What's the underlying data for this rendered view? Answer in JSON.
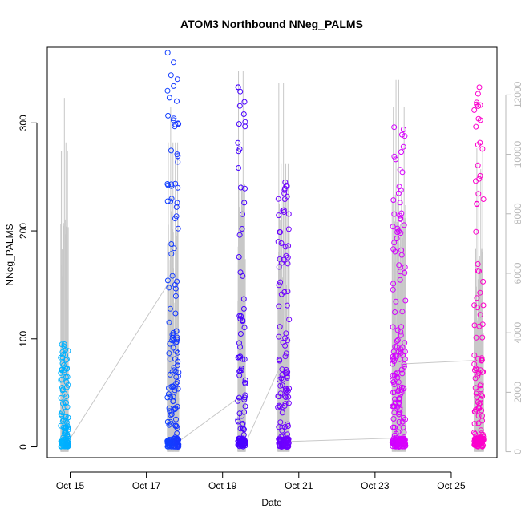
{
  "chart_data": {
    "type": "scatter",
    "title": "ATOM3 Northbound NNeg_PALMS",
    "xlabel": "Date",
    "ylabel": "NNeg_PALMS",
    "x_ticks": [
      "Oct 15",
      "Oct 17",
      "Oct 19",
      "Oct 21",
      "Oct 23",
      "Oct 25"
    ],
    "x_tick_days": [
      15,
      17,
      19,
      21,
      23,
      25
    ],
    "xlim_days": [
      14.4,
      26.2
    ],
    "ylim": [
      -10,
      370
    ],
    "y_ticks": [
      0,
      100,
      200,
      300
    ],
    "y2lim": [
      -200,
      13600
    ],
    "y2_ticks": [
      0,
      2000,
      4000,
      6000,
      8000,
      10000,
      12000
    ],
    "grid": false,
    "legend": "none",
    "point_color_gradient": [
      "#00b7ff",
      "#0059ff",
      "#3d00ff",
      "#8a00ff",
      "#d600ff",
      "#ff00c8"
    ],
    "secondary_line_color": "#c8c8c8",
    "groups": [
      {
        "day_start": 14.75,
        "day_end": 14.95,
        "max_y": 95,
        "n": 120,
        "y2_max": 11900,
        "y2_spikes": [
          6000,
          10100,
          10400,
          11900
        ]
      },
      {
        "day_start": 17.55,
        "day_end": 17.85,
        "max_y": 365,
        "n": 180,
        "y2_max": 11600,
        "y2_spikes": [
          11600,
          9800,
          10400
        ]
      },
      {
        "day_start": 19.4,
        "day_end": 19.6,
        "max_y": 333,
        "n": 110,
        "y2_max": 12800,
        "y2_spikes": [
          10900,
          12800,
          9000
        ]
      },
      {
        "day_start": 20.45,
        "day_end": 20.75,
        "max_y": 245,
        "n": 160,
        "y2_max": 12400,
        "y2_spikes": [
          9700,
          10300,
          12400
        ]
      },
      {
        "day_start": 23.45,
        "day_end": 23.8,
        "max_y": 296,
        "n": 200,
        "y2_max": 12500,
        "y2_spikes": [
          8800,
          11600,
          12500
        ]
      },
      {
        "day_start": 25.6,
        "day_end": 25.85,
        "max_y": 333,
        "n": 140,
        "y2_max": 10200,
        "y2_spikes": [
          10200,
          8800,
          9500
        ]
      }
    ],
    "connector_values": [
      {
        "day": 14.95,
        "y": 5
      },
      {
        "day": 17.55,
        "y": 150
      },
      {
        "day": 17.85,
        "y": 5
      },
      {
        "day": 19.4,
        "y": 45
      },
      {
        "day": 19.6,
        "y": 3
      },
      {
        "day": 20.45,
        "y": 70
      },
      {
        "day": 20.75,
        "y": 5
      },
      {
        "day": 23.45,
        "y": 8
      },
      {
        "day": 23.8,
        "y": 77
      },
      {
        "day": 25.6,
        "y": 80
      }
    ]
  }
}
